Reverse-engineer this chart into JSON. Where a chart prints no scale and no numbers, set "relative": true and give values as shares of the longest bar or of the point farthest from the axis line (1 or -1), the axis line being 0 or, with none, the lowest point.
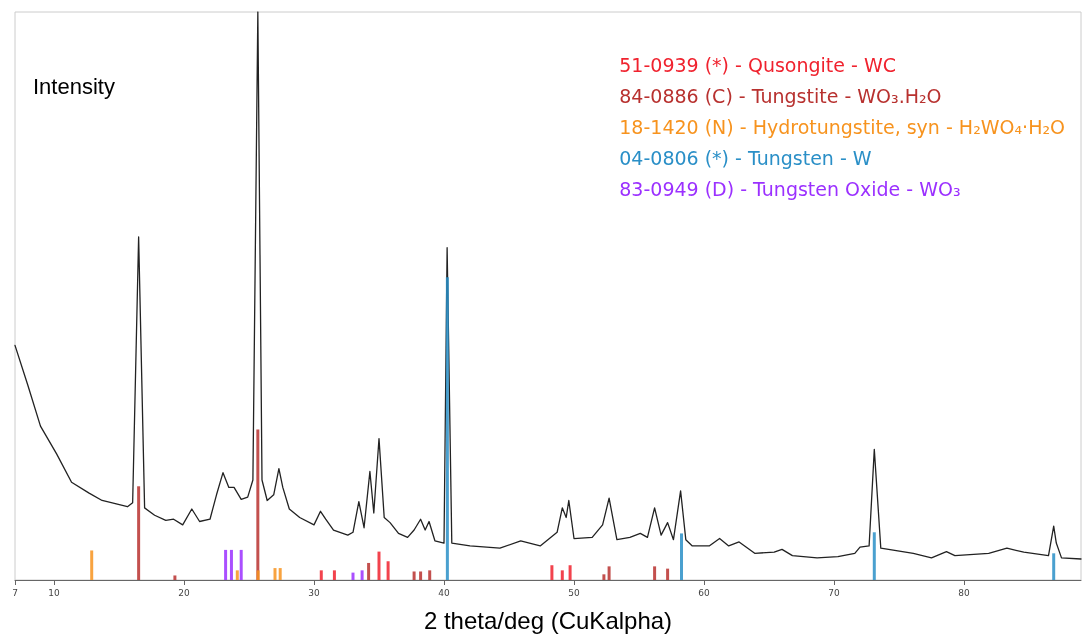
{
  "chart_data": {
    "type": "line",
    "relative": true,
    "xlabel": "2 theta/deg (CuKalpha)",
    "ylabel": "Intensity",
    "xlim": [
      7,
      89
    ],
    "xticks": [
      7,
      10,
      20,
      30,
      40,
      50,
      60,
      70,
      80
    ],
    "grid": false,
    "legend": "top right",
    "marker": "none",
    "line_style": "solid",
    "series": [
      {
        "color": "#222222",
        "x": [
          7.0,
          8.0,
          8.96,
          10.2,
          11.35,
          12.7,
          13.7,
          15.65,
          16.05,
          16.51,
          16.97,
          17.74,
          18.6,
          19.2,
          19.9,
          20.6,
          21.2,
          22.0,
          22.5,
          23.0,
          23.45,
          23.85,
          24.4,
          24.9,
          25.3,
          25.68,
          26.0,
          26.4,
          26.9,
          27.3,
          27.6,
          28.1,
          28.9,
          30.0,
          30.5,
          30.9,
          31.5,
          32.6,
          33.0,
          33.45,
          33.85,
          34.3,
          34.6,
          35.0,
          35.4,
          35.85,
          36.5,
          37.2,
          37.7,
          38.2,
          38.55,
          38.85,
          39.3,
          40.0,
          40.24,
          40.6,
          42.0,
          44.3,
          45.9,
          47.4,
          48.7,
          49.1,
          49.4,
          49.6,
          50.0,
          51.4,
          52.2,
          52.7,
          53.3,
          54.3,
          55.1,
          55.65,
          56.2,
          56.7,
          57.2,
          57.65,
          58.2,
          58.6,
          59.1,
          60.4,
          61.2,
          61.9,
          62.7,
          63.9,
          65.4,
          66.0,
          66.8,
          68.7,
          70.3,
          71.6,
          72.0,
          72.7,
          73.1,
          73.6,
          76.1,
          77.5,
          78.65,
          79.3,
          81.9,
          83.3,
          84.6,
          86.5,
          86.9,
          87.1,
          87.5,
          89.0
        ],
        "values": [
          0.413,
          0.342,
          0.271,
          0.222,
          0.172,
          0.153,
          0.14,
          0.129,
          0.136,
          0.604,
          0.127,
          0.114,
          0.105,
          0.107,
          0.097,
          0.125,
          0.103,
          0.107,
          0.15,
          0.189,
          0.163,
          0.163,
          0.142,
          0.146,
          0.176,
          1.0,
          0.176,
          0.14,
          0.15,
          0.196,
          0.163,
          0.125,
          0.11,
          0.097,
          0.121,
          0.107,
          0.088,
          0.079,
          0.084,
          0.138,
          0.092,
          0.191,
          0.118,
          0.249,
          0.11,
          0.101,
          0.082,
          0.075,
          0.088,
          0.107,
          0.088,
          0.103,
          0.069,
          0.065,
          0.585,
          0.065,
          0.06,
          0.056,
          0.069,
          0.06,
          0.084,
          0.127,
          0.11,
          0.14,
          0.073,
          0.075,
          0.097,
          0.144,
          0.071,
          0.075,
          0.082,
          0.075,
          0.127,
          0.079,
          0.101,
          0.071,
          0.157,
          0.071,
          0.06,
          0.06,
          0.073,
          0.06,
          0.067,
          0.047,
          0.049,
          0.054,
          0.043,
          0.039,
          0.041,
          0.047,
          0.058,
          0.06,
          0.23,
          0.056,
          0.047,
          0.039,
          0.05,
          0.043,
          0.047,
          0.056,
          0.049,
          0.043,
          0.095,
          0.065,
          0.039,
          0.037
        ]
      },
      {
        "type": "bar",
        "name": "51-0939 (*) - Qusongite - WC",
        "color": "#f0222e",
        "x": [
          30.56,
          31.57,
          35.0,
          35.7,
          48.3,
          49.1,
          49.7
        ],
        "values": [
          0.017,
          0.017,
          0.05,
          0.033,
          0.026,
          0.017,
          0.026
        ]
      },
      {
        "type": "bar",
        "name": "84-0886 (C) - Tungstite - WO₃.H₂O",
        "color": "#b8312f",
        "x": [
          16.51,
          19.3,
          25.68,
          34.2,
          37.7,
          38.2,
          38.9,
          52.3,
          52.7,
          56.2,
          57.2
        ],
        "values": [
          0.165,
          0.008,
          0.265,
          0.03,
          0.015,
          0.015,
          0.017,
          0.01,
          0.024,
          0.024,
          0.02
        ]
      },
      {
        "type": "bar",
        "name": "18-1420 (N) - Hydrotungstite, syn - H₂WO₄·H₂O",
        "color": "#f7931e",
        "x": [
          12.9,
          24.1,
          25.7,
          27.0,
          27.4
        ],
        "values": [
          0.052,
          0.017,
          0.017,
          0.021,
          0.021
        ]
      },
      {
        "type": "bar",
        "name": "04-0806 (*) - Tungsten - W",
        "color": "#2a8fc7",
        "x": [
          40.26,
          58.27,
          73.1,
          86.9
        ],
        "values": [
          0.533,
          0.082,
          0.084,
          0.047
        ]
      },
      {
        "type": "bar",
        "name": "83-0949 (D) - Tungsten Oxide - WO₃",
        "color": "#9b30ff",
        "x": [
          23.2,
          23.65,
          24.4,
          33.0,
          33.7
        ],
        "values": [
          0.053,
          0.053,
          0.053,
          0.013,
          0.017
        ]
      }
    ]
  }
}
